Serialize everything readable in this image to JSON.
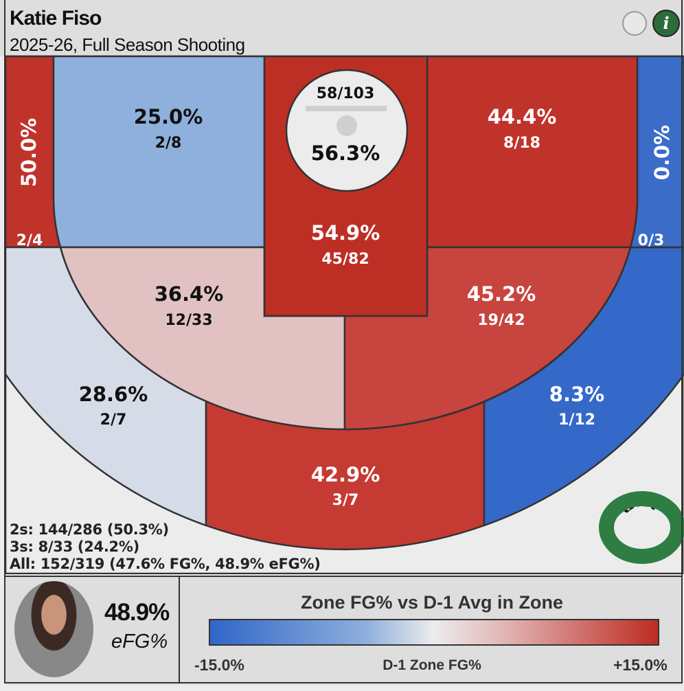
{
  "header": {
    "title": "Katie Fiso",
    "subtitle": "2025-26, Full Season Shooting",
    "info_label": "i"
  },
  "chart_data": {
    "type": "heatmap",
    "title": "Katie Fiso",
    "subtitle": "2025-26, Full Season Shooting",
    "zones": [
      {
        "zone": "left-corner-3",
        "pct": "50.0%",
        "made_att": "2/4",
        "color": "#c0332b"
      },
      {
        "zone": "left-baseline-mid",
        "pct": "25.0%",
        "made_att": "2/8",
        "color": "#8fb0dc"
      },
      {
        "zone": "rim",
        "pct": "56.3%",
        "made_att": "58/103",
        "color": "#ececec"
      },
      {
        "zone": "paint",
        "pct": "54.9%",
        "made_att": "45/82",
        "color": "#bd2f25"
      },
      {
        "zone": "right-baseline-mid",
        "pct": "44.4%",
        "made_att": "8/18",
        "color": "#c0332b"
      },
      {
        "zone": "right-corner-3",
        "pct": "0.0%",
        "made_att": "0/3",
        "color": "#3a6cc8"
      },
      {
        "zone": "left-elbow-mid",
        "pct": "36.4%",
        "made_att": "12/33",
        "color": "#e2c1c3"
      },
      {
        "zone": "right-elbow-mid",
        "pct": "45.2%",
        "made_att": "19/42",
        "color": "#c8443e"
      },
      {
        "zone": "left-wing-3",
        "pct": "28.6%",
        "made_att": "2/7",
        "color": "#d5dce8"
      },
      {
        "zone": "top-3",
        "pct": "42.9%",
        "made_att": "3/7",
        "color": "#c53a33"
      },
      {
        "zone": "right-wing-3",
        "pct": "8.3%",
        "made_att": "1/12",
        "color": "#3569c9"
      },
      {
        "zone": "deep-3",
        "made_att": "0/0",
        "color": "#ececec"
      }
    ],
    "legend": {
      "title": "Zone FG% vs D-1 Avg in Zone",
      "min": "-15.0%",
      "mid": "D-1 Zone FG%",
      "max": "+15.0%",
      "colors": [
        "#3066c8",
        "#ececec",
        "#bd2c22"
      ]
    }
  },
  "stats": {
    "twos": "2s: 144/286 (50.3%)",
    "threes": "3s: 8/33 (24.2%)",
    "all": "All: 152/319 (47.6% FG%, 48.9% eFG%)"
  },
  "player": {
    "efg_value": "48.9%",
    "efg_label": "eFG%"
  },
  "logo": {
    "text": "O",
    "color": "#2e7d42"
  }
}
